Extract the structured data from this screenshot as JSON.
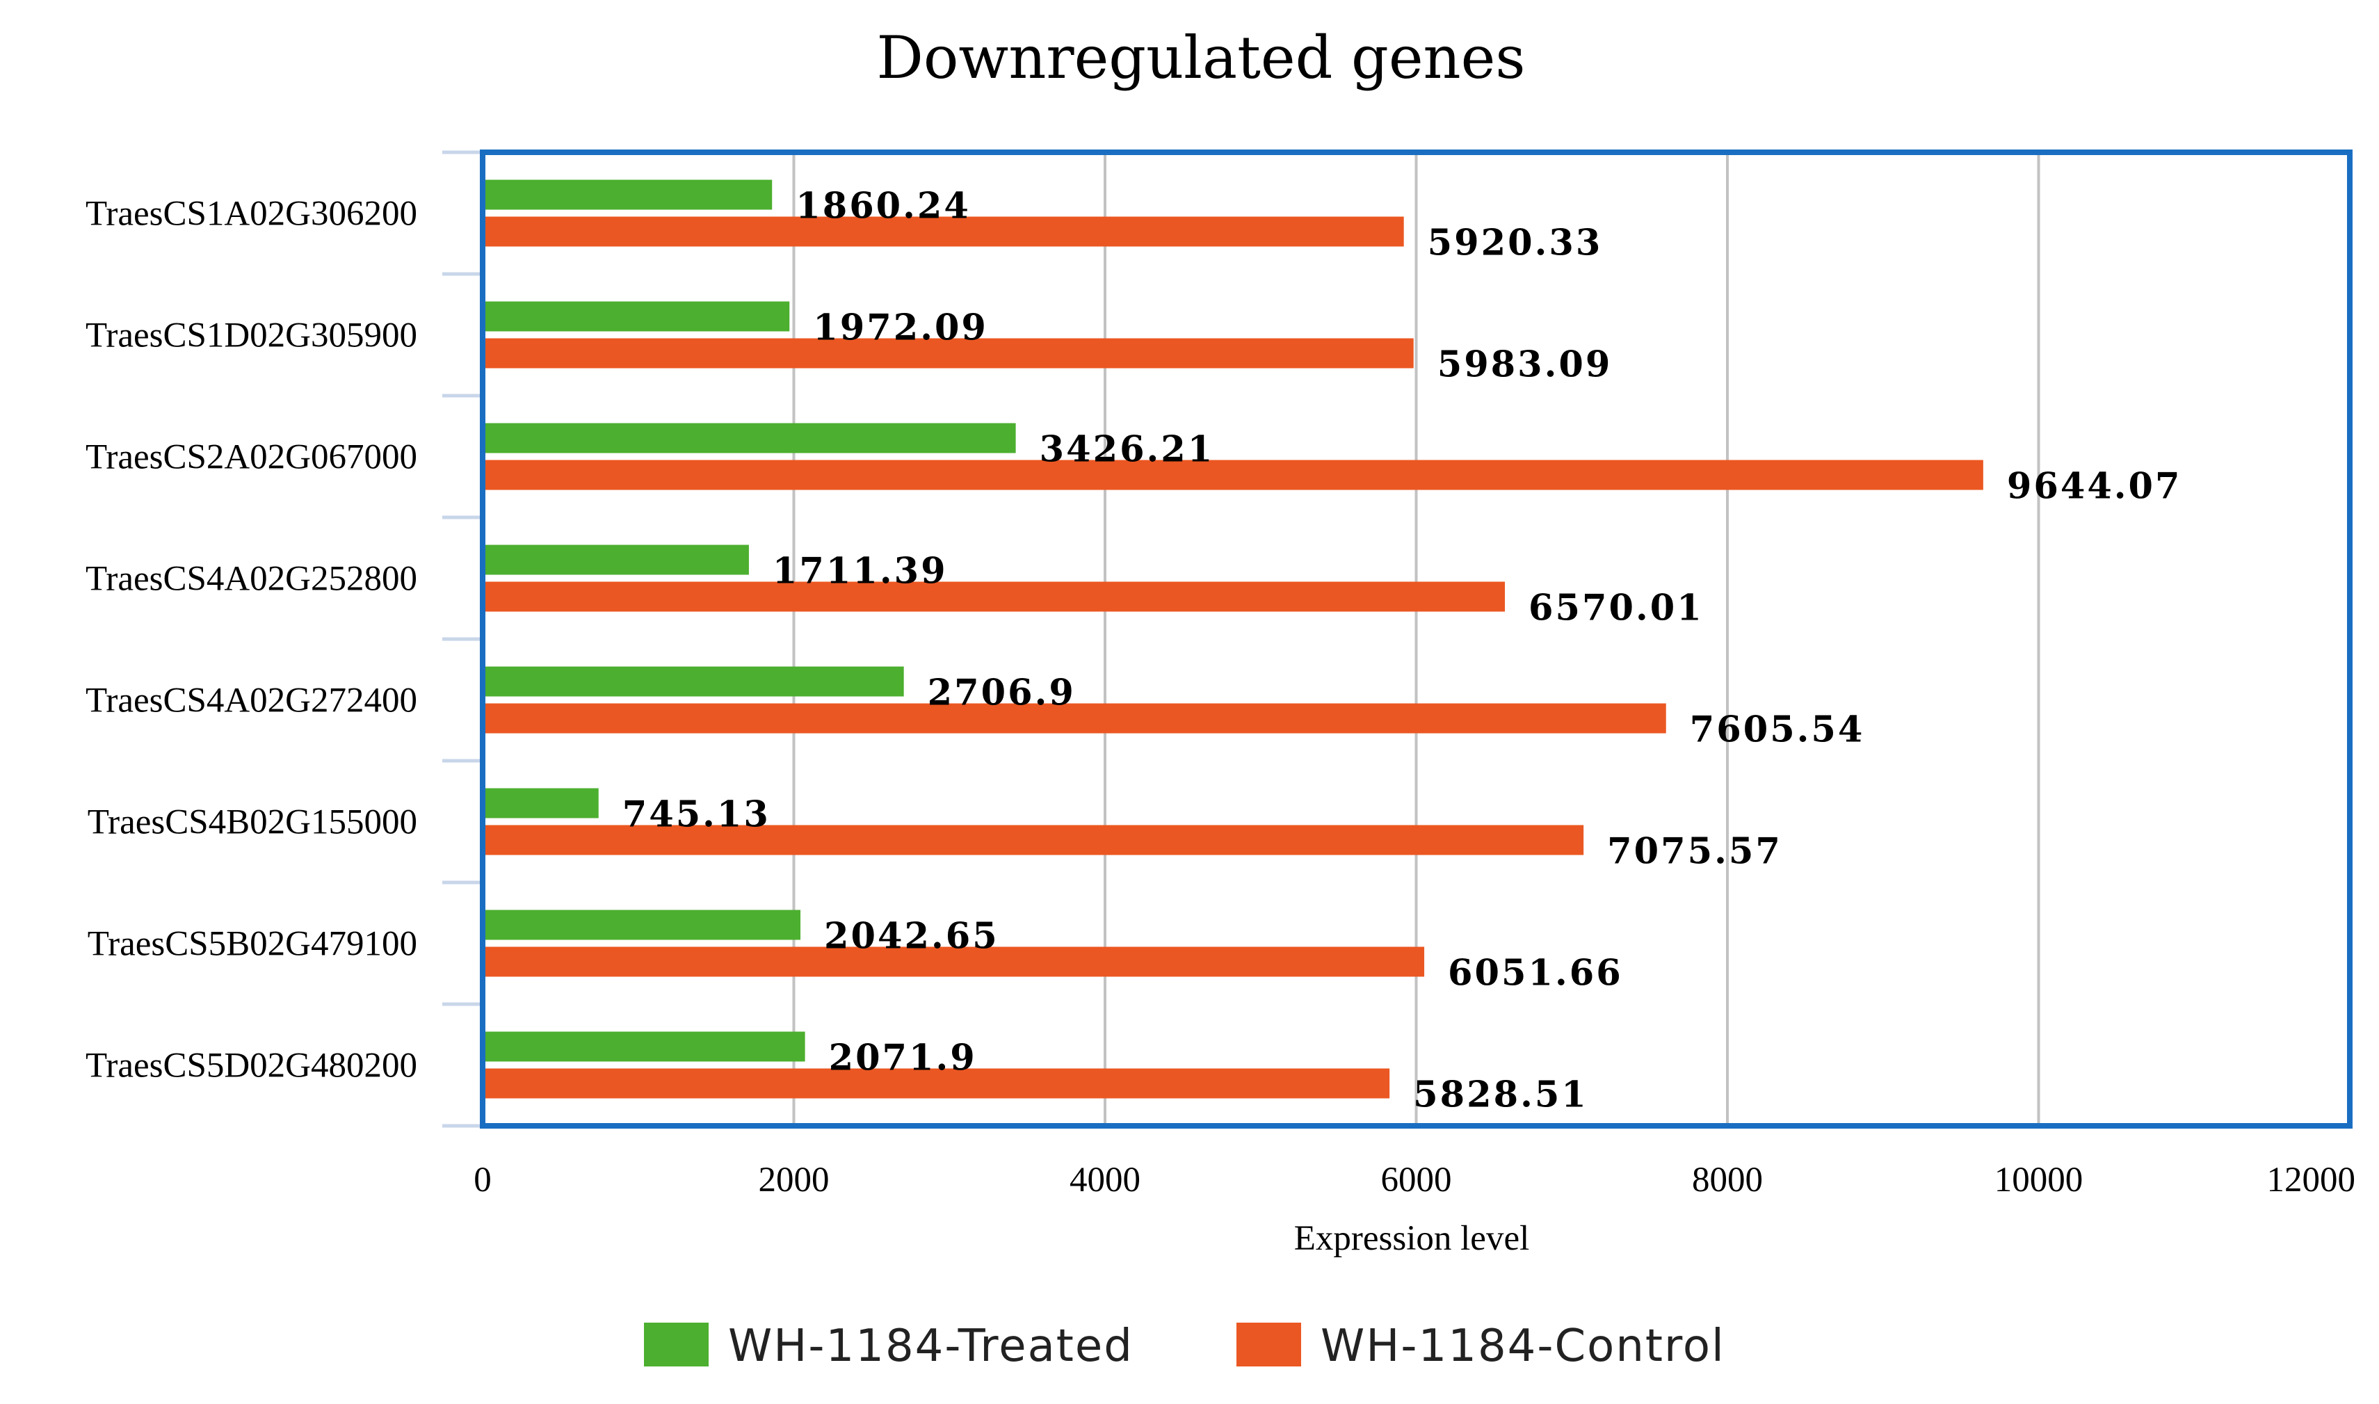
{
  "chart_data": {
    "type": "bar",
    "orientation": "horizontal",
    "title": "Downregulated genes",
    "xlabel": "Expression level",
    "ylabel": "",
    "xlim": [
      0,
      12000
    ],
    "x_ticks": [
      "0",
      "2000",
      "4000",
      "6000",
      "8000",
      "10000",
      "12000"
    ],
    "grid": true,
    "legend_position": "bottom",
    "categories": [
      "TraesCS1A02G306200",
      "TraesCS1D02G305900",
      "TraesCS2A02G067000",
      "TraesCS4A02G252800",
      "TraesCS4A02G272400",
      "TraesCS4B02G155000",
      "TraesCS5B02G479100",
      "TraesCS5D02G480200"
    ],
    "series": [
      {
        "name": "WH-1184-Treated",
        "color": "#4caf2f",
        "values": [
          1860.24,
          1972.09,
          3426.21,
          1711.39,
          2706.9,
          745.13,
          2042.65,
          2071.9
        ],
        "labels": [
          "1860.24",
          "1972.09",
          "3426.21",
          "1711.39",
          "2706.9",
          "745.13",
          "2042.65",
          "2071.9"
        ]
      },
      {
        "name": "WH-1184-Control",
        "color": "#eb5722",
        "values": [
          5920.33,
          5983.09,
          9644.07,
          6570.01,
          7605.54,
          7075.57,
          6051.66,
          5828.51
        ],
        "labels": [
          "5920.33",
          "5983.09",
          "9644.07",
          "6570.01",
          "7605.54",
          "7075.57",
          "6051.66",
          "5828.51"
        ]
      }
    ],
    "frame_color": "#1a6ec2",
    "gridline_color": "#c2c2c2"
  }
}
